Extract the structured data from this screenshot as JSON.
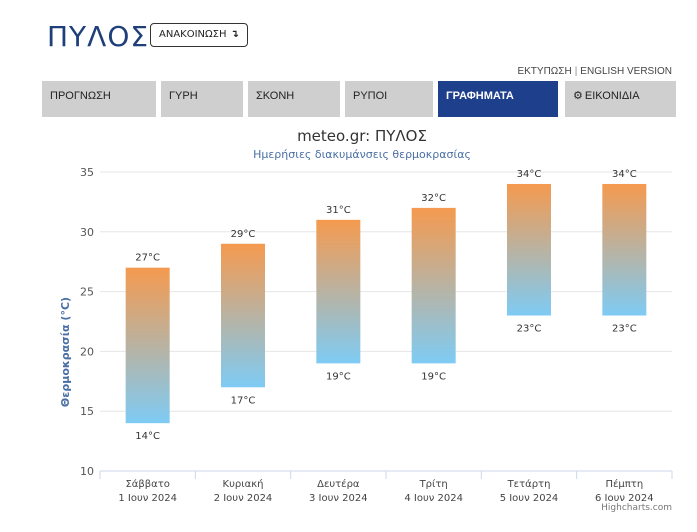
{
  "header": {
    "city": "ΠΥΛΟΣ",
    "announce_label": "ΑΝΑΚΟΙΝΩΣΗ",
    "announce_icon": "arrow-down-icon",
    "print_link": "ΕΚΤΥΠΩΣΗ",
    "separator": "|",
    "english_link": "ENGLISH VERSION"
  },
  "tabs": [
    {
      "label": "ΠΡΟΓΝΩΣΗ"
    },
    {
      "label": "ΓΥΡΗ"
    },
    {
      "label": "ΣΚΟΝΗ"
    },
    {
      "label": "ΡΥΠΟΙ"
    },
    {
      "label": "ΓΡΑΦΗΜΑΤΑ",
      "active": true
    },
    {
      "label": "ΕΙΚΟΝΙΔΙΑ",
      "icon": "gear-icon"
    }
  ],
  "colors": {
    "accent": "#1e3f8c",
    "tab_bg": "#cfcfcf",
    "bar_top": "#f59a4f",
    "bar_bottom": "#7ecbf4",
    "axis_title": "#4a6fa5"
  },
  "chart_data": {
    "type": "bar",
    "title": "meteo.gr: ΠΥΛΟΣ",
    "subtitle": "Ημερήσιες διακυμάνσεις θερμοκρασίας",
    "ylabel": "Θερμοκρασία (°C)",
    "ylim": [
      10,
      35
    ],
    "yticks": [
      10,
      15,
      20,
      25,
      30,
      35
    ],
    "categories": [
      [
        "Σάββατο",
        "1 Ιουν 2024"
      ],
      [
        "Κυριακή",
        "2 Ιουν 2024"
      ],
      [
        "Δευτέρα",
        "3 Ιουν 2024"
      ],
      [
        "Τρίτη",
        "4 Ιουν 2024"
      ],
      [
        "Τετάρτη",
        "5 Ιουν 2024"
      ],
      [
        "Πέμπτη",
        "6 Ιουν 2024"
      ]
    ],
    "series": [
      {
        "name": "min",
        "values": [
          14,
          17,
          19,
          19,
          23,
          23
        ]
      },
      {
        "name": "max",
        "values": [
          27,
          29,
          31,
          32,
          34,
          34
        ]
      }
    ],
    "unit": "°C",
    "grid": true,
    "credit": "Highcharts.com"
  }
}
